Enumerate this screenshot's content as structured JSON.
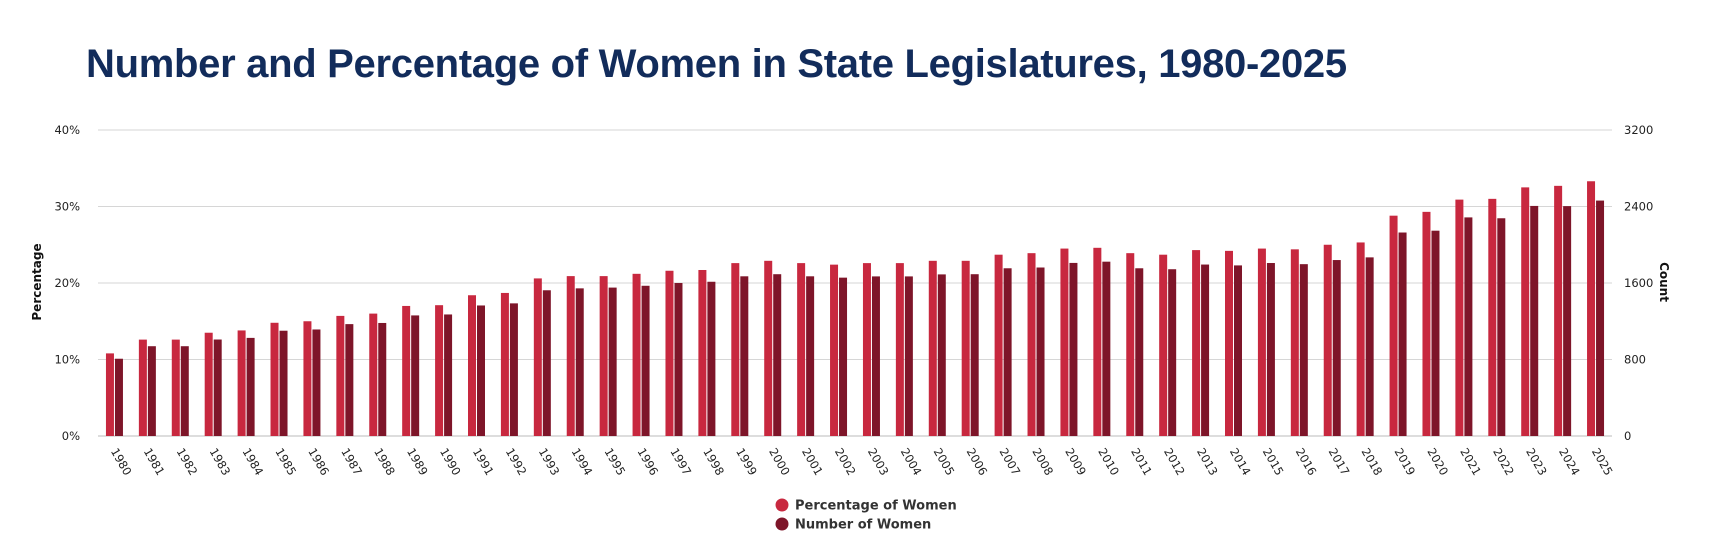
{
  "chart_data": {
    "type": "bar",
    "title": "Number and Percentage of Women in State Legislatures, 1980-2025",
    "xlabel": "",
    "ylabel": "Percentage",
    "y2label": "Count",
    "ylim": [
      0,
      40
    ],
    "y2lim": [
      0,
      3200
    ],
    "y_ticks": [
      "0%",
      "10%",
      "20%",
      "30%",
      "40%"
    ],
    "y2_ticks": [
      "0",
      "800",
      "1600",
      "2400",
      "3200"
    ],
    "grid": true,
    "legend_position": "bottom-center",
    "categories": [
      "1980",
      "1981",
      "1982",
      "1983",
      "1984",
      "1985",
      "1986",
      "1987",
      "1988",
      "1989",
      "1990",
      "1991",
      "1992",
      "1993",
      "1994",
      "1995",
      "1996",
      "1997",
      "1998",
      "1999",
      "2000",
      "2001",
      "2002",
      "2003",
      "2004",
      "2005",
      "2006",
      "2007",
      "2008",
      "2009",
      "2010",
      "2011",
      "2012",
      "2013",
      "2014",
      "2015",
      "2016",
      "2017",
      "2018",
      "2019",
      "2020",
      "2021",
      "2022",
      "2023",
      "2024",
      "2025"
    ],
    "series": [
      {
        "name": "Percentage of Women",
        "axis": "left",
        "color": "#c8283f",
        "values": [
          10.8,
          12.6,
          12.6,
          13.5,
          13.8,
          14.8,
          15.0,
          15.7,
          16.0,
          17.0,
          17.1,
          18.4,
          18.7,
          20.6,
          20.9,
          20.9,
          21.2,
          21.6,
          21.7,
          22.6,
          22.9,
          22.6,
          22.4,
          22.6,
          22.6,
          22.9,
          22.9,
          23.7,
          23.9,
          24.5,
          24.6,
          23.9,
          23.7,
          24.3,
          24.2,
          24.5,
          24.4,
          25.0,
          25.3,
          28.8,
          29.3,
          30.9,
          31.0,
          32.5,
          32.7,
          33.3
        ]
      },
      {
        "name": "Number of Women",
        "axis": "right",
        "color": "#7e1529",
        "values": [
          808,
          939,
          939,
          1009,
          1026,
          1101,
          1114,
          1170,
          1182,
          1261,
          1271,
          1365,
          1387,
          1524,
          1544,
          1552,
          1571,
          1600,
          1613,
          1670,
          1692,
          1670,
          1656,
          1669,
          1669,
          1690,
          1692,
          1754,
          1762,
          1810,
          1823,
          1754,
          1744,
          1793,
          1784,
          1809,
          1797,
          1840,
          1868,
          2128,
          2147,
          2286,
          2277,
          2406,
          2404,
          2462
        ]
      }
    ]
  }
}
